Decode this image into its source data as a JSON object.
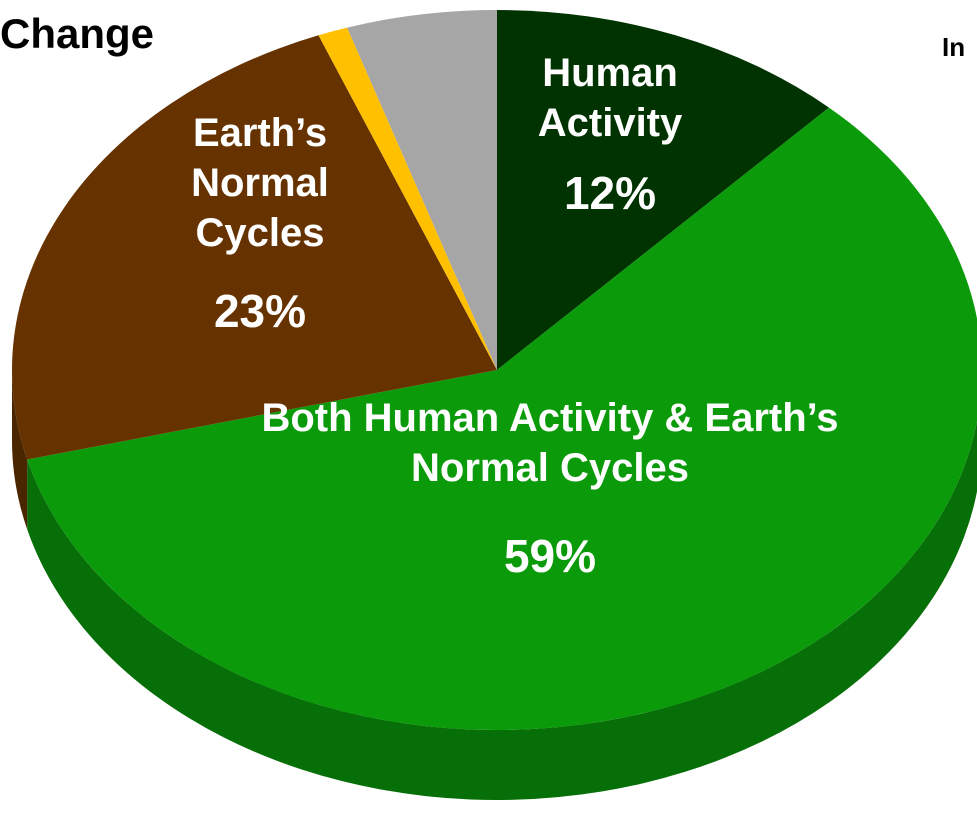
{
  "chart_data": {
    "type": "pie",
    "title": "Change",
    "annotations": [
      "In"
    ],
    "categories": [
      "Human Activity",
      "Both Human Activity & Earth’s Normal Cycles",
      "Earth’s Normal Cycles",
      null,
      null
    ],
    "values": [
      12,
      59,
      23,
      1,
      5
    ],
    "value_labels": [
      "12%",
      "59%",
      "23%",
      null,
      null
    ],
    "colors": [
      "#003300",
      "#0a9a0a",
      "#663300",
      "#ffc000",
      "#a6a6a6"
    ]
  }
}
